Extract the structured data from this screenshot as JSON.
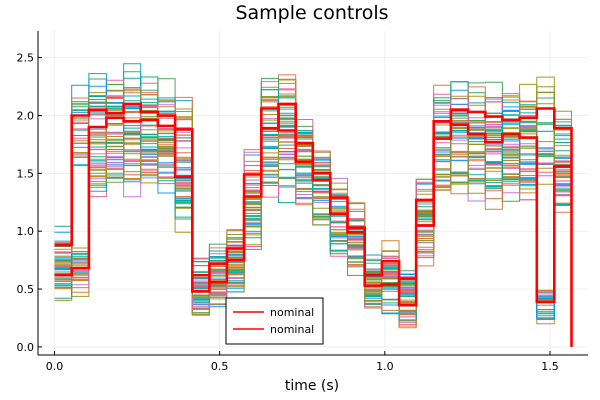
{
  "chart_data": {
    "type": "line",
    "step": "post",
    "title": "Sample controls",
    "xlabel": "time (s)",
    "ylabel": "",
    "xlim": [
      -0.05,
      1.615
    ],
    "ylim": [
      -0.07,
      2.73
    ],
    "xticks": [
      0.0,
      0.5,
      1.0,
      1.5
    ],
    "xtick_labels": [
      "0.0",
      "0.5",
      "1.0",
      "1.5"
    ],
    "yticks": [
      0.0,
      0.5,
      1.0,
      1.5,
      2.0,
      2.5
    ],
    "ytick_labels": [
      "0.0",
      "0.5",
      "1.0",
      "1.5",
      "2.0",
      "2.5"
    ],
    "grid": true,
    "legend_position": "bottom-center",
    "x": [
      0.0,
      0.052,
      0.104,
      0.157,
      0.209,
      0.261,
      0.313,
      0.365,
      0.417,
      0.469,
      0.522,
      0.574,
      0.626,
      0.678,
      0.73,
      0.782,
      0.835,
      0.887,
      0.939,
      0.991,
      1.043,
      1.095,
      1.148,
      1.2,
      1.252,
      1.304,
      1.356,
      1.408,
      1.46,
      1.513,
      1.565
    ],
    "sample_colors": [
      "#009AFA",
      "#E36F47",
      "#3EA44E",
      "#C371D2",
      "#AC8E18",
      "#00AAAE",
      "#ED5E93",
      "#C68225",
      "#00A98D",
      "#8E971E"
    ],
    "sample_count": 60,
    "nominal_color": "#FF0000",
    "series": [
      {
        "name": "nominal",
        "values": [
          0.88,
          2.0,
          2.05,
          2.02,
          2.1,
          2.03,
          2.0,
          1.47,
          0.48,
          0.72,
          0.75,
          1.3,
          1.89,
          2.1,
          1.76,
          1.5,
          1.15,
          0.99,
          0.53,
          0.54,
          0.59,
          1.27,
          1.8,
          2.05,
          2.03,
          1.99,
          1.96,
          1.98,
          2.06,
          1.89,
          0.0
        ]
      },
      {
        "name": "nominal",
        "values": [
          0.62,
          0.68,
          1.9,
          1.98,
          1.95,
          1.96,
          1.91,
          1.88,
          0.62,
          0.56,
          0.85,
          1.49,
          2.06,
          1.87,
          1.6,
          1.44,
          1.29,
          1.03,
          0.62,
          0.74,
          0.36,
          1.05,
          1.95,
          1.92,
          1.84,
          1.77,
          1.84,
          1.81,
          0.39,
          1.56,
          1.56
        ]
      }
    ]
  }
}
